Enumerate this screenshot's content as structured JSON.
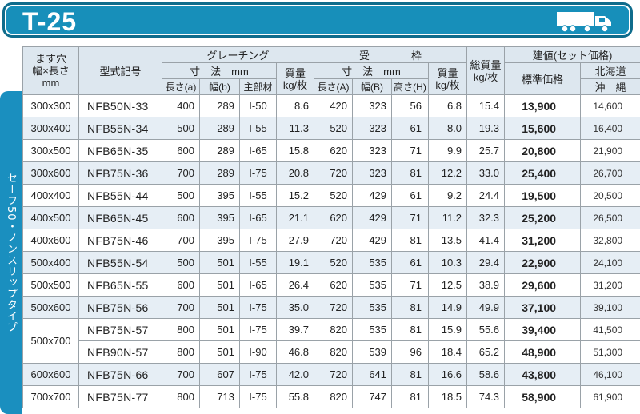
{
  "title": "T-25",
  "icons": {
    "truck": "truck-icon"
  },
  "series_label": "セーフ50・ノンスリップタイプ",
  "header": {
    "size_col": "ます穴\n幅×長さ\nmm",
    "model_col": "型式記号",
    "grating": "グレーチング",
    "grating_dims": "寸　法　mm",
    "grating_weight": "質量\nkg/枚",
    "grating_len": "長さ(a)",
    "grating_width": "幅(b)",
    "grating_main": "主部材",
    "frame": "受　　　　枠",
    "frame_dims": "寸　法　mm",
    "frame_weight": "質量\nkg/枚",
    "frame_len": "長さ(A)",
    "frame_width": "幅(B)",
    "frame_height": "高さ(H)",
    "total_weight": "総質量\nkg/枚",
    "price": "建値(セット価格)",
    "price_std": "標準価格",
    "price_hokkaido_1": "北海道",
    "price_hokkaido_2": "沖　縄"
  },
  "rows": [
    {
      "size": "300x300",
      "model": "NFB50N-33",
      "a": "400",
      "b": "289",
      "main": "I-50",
      "gw": "8.6",
      "A": "420",
      "B": "323",
      "H": "56",
      "fw": "6.8",
      "total": "15.4",
      "std": "13,900",
      "hok": "14,600"
    },
    {
      "size": "300x400",
      "model": "NFB55N-34",
      "a": "500",
      "b": "289",
      "main": "I-55",
      "gw": "11.3",
      "A": "520",
      "B": "323",
      "H": "61",
      "fw": "8.0",
      "total": "19.3",
      "std": "15,600",
      "hok": "16,400"
    },
    {
      "size": "300x500",
      "model": "NFB65N-35",
      "a": "600",
      "b": "289",
      "main": "I-65",
      "gw": "15.8",
      "A": "620",
      "B": "323",
      "H": "71",
      "fw": "9.9",
      "total": "25.7",
      "std": "20,800",
      "hok": "21,900"
    },
    {
      "size": "300x600",
      "model": "NFB75N-36",
      "a": "700",
      "b": "289",
      "main": "I-75",
      "gw": "20.8",
      "A": "720",
      "B": "323",
      "H": "81",
      "fw": "12.2",
      "total": "33.0",
      "std": "25,400",
      "hok": "26,700"
    },
    {
      "size": "400x400",
      "model": "NFB55N-44",
      "a": "500",
      "b": "395",
      "main": "I-55",
      "gw": "15.2",
      "A": "520",
      "B": "429",
      "H": "61",
      "fw": "9.2",
      "total": "24.4",
      "std": "19,500",
      "hok": "20,500"
    },
    {
      "size": "400x500",
      "model": "NFB65N-45",
      "a": "600",
      "b": "395",
      "main": "I-65",
      "gw": "21.1",
      "A": "620",
      "B": "429",
      "H": "71",
      "fw": "11.2",
      "total": "32.3",
      "std": "25,200",
      "hok": "26,500"
    },
    {
      "size": "400x600",
      "model": "NFB75N-46",
      "a": "700",
      "b": "395",
      "main": "I-75",
      "gw": "27.9",
      "A": "720",
      "B": "429",
      "H": "81",
      "fw": "13.5",
      "total": "41.4",
      "std": "31,200",
      "hok": "32,800"
    },
    {
      "size": "500x400",
      "model": "NFB55N-54",
      "a": "500",
      "b": "501",
      "main": "I-55",
      "gw": "19.1",
      "A": "520",
      "B": "535",
      "H": "61",
      "fw": "10.3",
      "total": "29.4",
      "std": "22,900",
      "hok": "24,100"
    },
    {
      "size": "500x500",
      "model": "NFB65N-55",
      "a": "600",
      "b": "501",
      "main": "I-65",
      "gw": "26.4",
      "A": "620",
      "B": "535",
      "H": "71",
      "fw": "12.5",
      "total": "38.9",
      "std": "29,600",
      "hok": "31,200"
    },
    {
      "size": "500x600",
      "model": "NFB75N-56",
      "a": "700",
      "b": "501",
      "main": "I-75",
      "gw": "35.0",
      "A": "720",
      "B": "535",
      "H": "81",
      "fw": "14.9",
      "total": "49.9",
      "std": "37,100",
      "hok": "39,100"
    },
    {
      "size": "500x700",
      "model": "NFB75N-57",
      "a": "800",
      "b": "501",
      "main": "I-75",
      "gw": "39.7",
      "A": "820",
      "B": "535",
      "H": "81",
      "fw": "15.9",
      "total": "55.6",
      "std": "39,400",
      "hok": "41,500"
    },
    {
      "size": "",
      "model": "NFB90N-57",
      "a": "800",
      "b": "501",
      "main": "I-90",
      "gw": "46.8",
      "A": "820",
      "B": "539",
      "H": "96",
      "fw": "18.4",
      "total": "65.2",
      "std": "48,900",
      "hok": "51,300"
    },
    {
      "size": "600x600",
      "model": "NFB75N-66",
      "a": "700",
      "b": "607",
      "main": "I-75",
      "gw": "42.0",
      "A": "720",
      "B": "641",
      "H": "81",
      "fw": "16.6",
      "total": "58.6",
      "std": "43,800",
      "hok": "46,100"
    },
    {
      "size": "700x700",
      "model": "NFB75N-77",
      "a": "800",
      "b": "713",
      "main": "I-75",
      "gw": "55.8",
      "A": "820",
      "B": "747",
      "H": "81",
      "fw": "18.5",
      "total": "74.3",
      "std": "58,900",
      "hok": "61,900"
    }
  ]
}
